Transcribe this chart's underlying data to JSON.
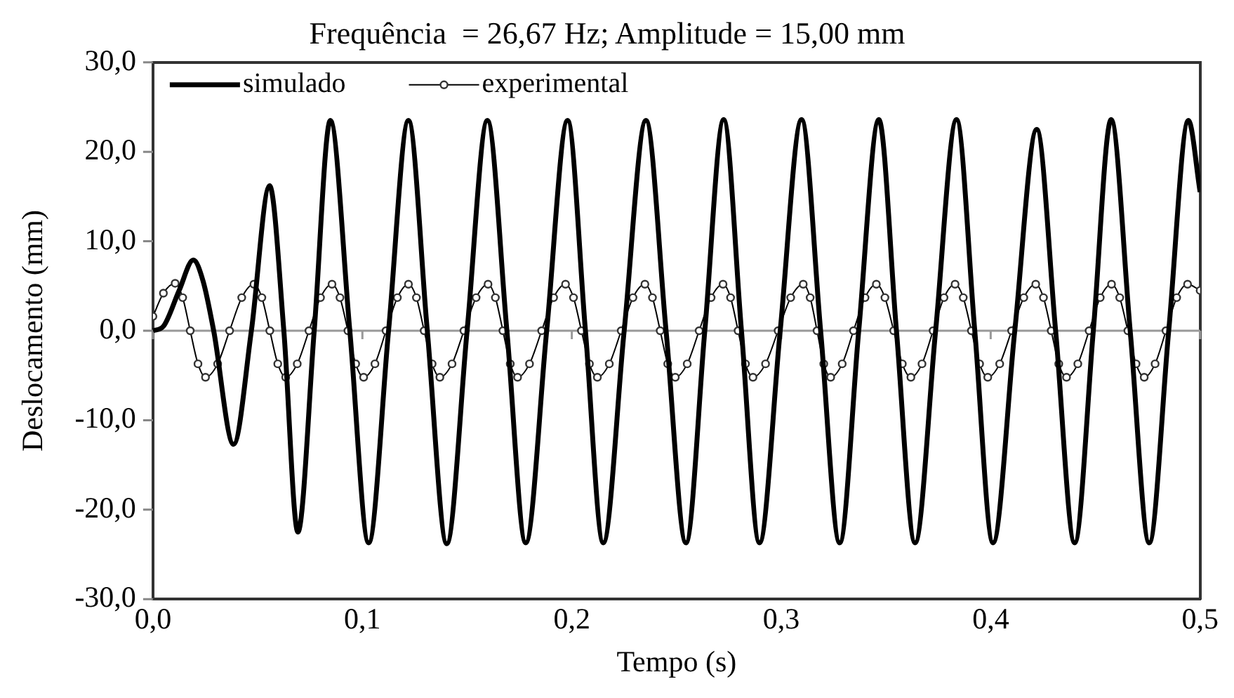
{
  "chart_data": {
    "type": "line",
    "title": "Frequência  = 26,67 Hz; Amplitude = 15,00 mm",
    "xlabel": "Tempo (s)",
    "ylabel": "Deslocamento (mm)",
    "xlim": [
      0,
      0.5
    ],
    "xticks": [
      {
        "value": 0,
        "label": "0,0"
      },
      {
        "value": 0.1,
        "label": "0,1"
      },
      {
        "value": 0.2,
        "label": "0,2"
      },
      {
        "value": 0.3,
        "label": "0,3"
      },
      {
        "value": 0.4,
        "label": "0,4"
      },
      {
        "value": 0.5,
        "label": "0,5"
      }
    ],
    "ylim": [
      -30,
      30
    ],
    "yticks": [
      {
        "value": -30,
        "label": "-30,0"
      },
      {
        "value": -20,
        "label": "-20,0"
      },
      {
        "value": -10,
        "label": "-10,0"
      },
      {
        "value": 0,
        "label": "0,0"
      },
      {
        "value": 10,
        "label": "10,0"
      },
      {
        "value": 20,
        "label": "20,0"
      },
      {
        "value": 30,
        "label": "30,0"
      }
    ],
    "grid": false,
    "legend": "top left",
    "ref_lines": [
      {
        "axis": "y",
        "value": 0,
        "color": "#999999"
      }
    ],
    "series": [
      {
        "name": "simulado",
        "color": "#000000",
        "marker": "none",
        "x": [
          0,
          0.005,
          0.0125,
          0.0193,
          0.024,
          0.029,
          0.0385,
          0.047,
          0.0557,
          0.0625,
          0.0692,
          0.077,
          0.0847,
          0.094,
          0.103,
          0.1125,
          0.122,
          0.131,
          0.1403,
          0.15,
          0.1597,
          0.169,
          0.178,
          0.188,
          0.198,
          0.2065,
          0.215,
          0.225,
          0.2354,
          0.245,
          0.2545,
          0.2635,
          0.2725,
          0.281,
          0.2896,
          0.2995,
          0.3097,
          0.3188,
          0.3279,
          0.337,
          0.3466,
          0.355,
          0.3639,
          0.3737,
          0.3837,
          0.3924,
          0.4011,
          0.4115,
          0.422,
          0.431,
          0.4401,
          0.449,
          0.4575,
          0.4666,
          0.4757,
          0.485,
          0.4944,
          0.5
        ],
        "values": [
          0,
          0.5,
          4.5,
          7.9,
          5.5,
          0,
          -12.7,
          0,
          16.2,
          0,
          -22.5,
          0,
          23.5,
          0,
          -23.7,
          0,
          23.5,
          0,
          -23.8,
          0,
          23.5,
          0,
          -23.7,
          0,
          23.5,
          0,
          -23.7,
          0,
          23.5,
          0,
          -23.7,
          0,
          23.6,
          0,
          -23.7,
          0,
          23.6,
          0,
          -23.7,
          0,
          23.6,
          0,
          -23.7,
          0,
          23.6,
          0,
          -23.7,
          0,
          22.5,
          0,
          -23.7,
          0,
          23.6,
          0,
          -23.7,
          0,
          23.5,
          15.5
        ]
      },
      {
        "name": "experimental",
        "color": "#000000",
        "marker": "circle",
        "x": [
          0,
          0.005,
          0.0106,
          0.0142,
          0.0178,
          0.0215,
          0.0251,
          0.0309,
          0.0366,
          0.0424,
          0.0482,
          0.052,
          0.0558,
          0.0596,
          0.0634,
          0.0689,
          0.0745,
          0.08,
          0.0855,
          0.0893,
          0.0931,
          0.0968,
          0.1006,
          0.106,
          0.1113,
          0.1167,
          0.122,
          0.1258,
          0.1295,
          0.1333,
          0.137,
          0.1428,
          0.1485,
          0.1543,
          0.16,
          0.1635,
          0.1671,
          0.1706,
          0.1741,
          0.1798,
          0.1856,
          0.1913,
          0.197,
          0.2008,
          0.2046,
          0.2084,
          0.2122,
          0.2179,
          0.2236,
          0.2292,
          0.2349,
          0.2385,
          0.2422,
          0.2458,
          0.2494,
          0.2551,
          0.2608,
          0.2665,
          0.2722,
          0.2758,
          0.2794,
          0.2829,
          0.2865,
          0.2925,
          0.2985,
          0.3045,
          0.3105,
          0.3138,
          0.3171,
          0.3203,
          0.3236,
          0.3291,
          0.3345,
          0.34,
          0.3454,
          0.3495,
          0.3537,
          0.3578,
          0.3619,
          0.3672,
          0.3725,
          0.3777,
          0.383,
          0.3869,
          0.3908,
          0.3947,
          0.3986,
          0.4043,
          0.41,
          0.4158,
          0.4215,
          0.4252,
          0.4289,
          0.4325,
          0.4362,
          0.4416,
          0.447,
          0.4523,
          0.4577,
          0.4616,
          0.4655,
          0.4694,
          0.4733,
          0.4785,
          0.4837,
          0.4888,
          0.494,
          0.5
        ],
        "values": [
          1.6,
          4.2,
          5.3,
          3.7,
          0,
          -3.7,
          -5.2,
          -3.7,
          0,
          3.7,
          5.2,
          3.7,
          0,
          -3.7,
          -5.2,
          -3.7,
          0,
          3.7,
          5.2,
          3.7,
          0,
          -3.7,
          -5.2,
          -3.7,
          0,
          3.7,
          5.2,
          3.7,
          0,
          -3.7,
          -5.2,
          -3.7,
          0,
          3.7,
          5.2,
          3.7,
          0,
          -3.7,
          -5.2,
          -3.7,
          0,
          3.7,
          5.2,
          3.7,
          0,
          -3.7,
          -5.2,
          -3.7,
          0,
          3.7,
          5.2,
          3.7,
          0,
          -3.7,
          -5.2,
          -3.7,
          0,
          3.7,
          5.2,
          3.7,
          0,
          -3.7,
          -5.2,
          -3.7,
          0,
          3.7,
          5.2,
          3.7,
          0,
          -3.7,
          -5.2,
          -3.7,
          0,
          3.7,
          5.2,
          3.7,
          0,
          -3.7,
          -5.2,
          -3.7,
          0,
          3.7,
          5.2,
          3.7,
          0,
          -3.7,
          -5.2,
          -3.7,
          0,
          3.7,
          5.2,
          3.7,
          0,
          -3.7,
          -5.2,
          -3.7,
          0,
          3.7,
          5.2,
          3.7,
          0,
          -3.7,
          -5.2,
          -3.7,
          0,
          3.7,
          5.2,
          4.5
        ]
      }
    ]
  }
}
